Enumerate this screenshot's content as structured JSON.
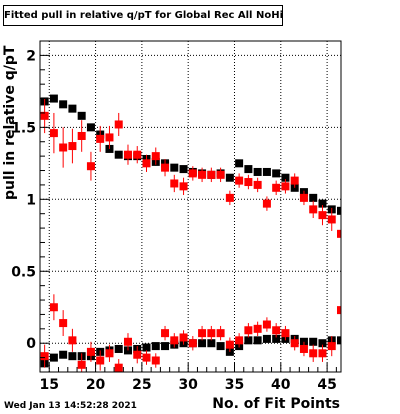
{
  "chart_data": {
    "type": "scatter",
    "title": "Fitted pull in relative q/pT for Global Rec All NoHits",
    "xlabel": "No. of Fit Points",
    "ylabel": "pull in relative q/pT",
    "xlim": [
      14,
      46.5
    ],
    "ylim": [
      -0.2,
      2.1
    ],
    "xticks": [
      "15",
      "20",
      "25",
      "30",
      "35",
      "40",
      "45"
    ],
    "xtick_values": [
      15,
      20,
      25,
      30,
      35,
      40,
      45
    ],
    "yticks": [
      "0",
      "0.5",
      "1",
      "1.5",
      "2"
    ],
    "ytick_values": [
      0,
      0.5,
      1,
      1.5,
      2
    ],
    "grid": true,
    "series": [
      {
        "color": "#000000",
        "values_upper": [
          [
            14.5,
            1.68,
            0.02
          ],
          [
            15.5,
            1.7,
            0.02
          ],
          [
            16.5,
            1.66,
            0.02
          ],
          [
            17.5,
            1.63,
            0.02
          ],
          [
            18.5,
            1.58,
            0.02
          ],
          [
            19.5,
            1.5,
            0.02
          ],
          [
            20.5,
            1.45,
            0.02
          ],
          [
            21.5,
            1.35,
            0.02
          ],
          [
            22.5,
            1.31,
            0.02
          ],
          [
            23.5,
            1.3,
            0.02
          ],
          [
            24.5,
            1.3,
            0.02
          ],
          [
            25.5,
            1.28,
            0.02
          ],
          [
            26.5,
            1.26,
            0.02
          ],
          [
            27.5,
            1.25,
            0.02
          ],
          [
            28.5,
            1.22,
            0.02
          ],
          [
            29.5,
            1.21,
            0.02
          ],
          [
            30.5,
            1.19,
            0.02
          ],
          [
            31.5,
            1.18,
            0.02
          ],
          [
            32.5,
            1.17,
            0.02
          ],
          [
            33.5,
            1.18,
            0.02
          ],
          [
            34.5,
            1.15,
            0.02
          ],
          [
            35.5,
            1.25,
            0.02
          ],
          [
            36.5,
            1.21,
            0.02
          ],
          [
            37.5,
            1.19,
            0.02
          ],
          [
            38.5,
            1.19,
            0.02
          ],
          [
            39.5,
            1.18,
            0.02
          ],
          [
            40.5,
            1.15,
            0.02
          ],
          [
            41.5,
            1.08,
            0.02
          ],
          [
            42.5,
            1.05,
            0.02
          ],
          [
            43.5,
            1.01,
            0.02
          ],
          [
            44.5,
            0.97,
            0.02
          ],
          [
            45.5,
            0.93,
            0.02
          ],
          [
            46.5,
            0.92,
            0.02
          ]
        ],
        "values_lower": [
          [
            14.5,
            -0.14,
            0.02
          ],
          [
            15.5,
            -0.1,
            0.02
          ],
          [
            16.5,
            -0.08,
            0.02
          ],
          [
            17.5,
            -0.09,
            0.02
          ],
          [
            18.5,
            -0.09,
            0.02
          ],
          [
            19.5,
            -0.09,
            0.02
          ],
          [
            20.5,
            -0.06,
            0.02
          ],
          [
            21.5,
            -0.05,
            0.02
          ],
          [
            22.5,
            -0.04,
            0.02
          ],
          [
            23.5,
            -0.05,
            0.02
          ],
          [
            24.5,
            -0.04,
            0.02
          ],
          [
            25.5,
            -0.03,
            0.02
          ],
          [
            26.5,
            -0.02,
            0.02
          ],
          [
            27.5,
            -0.02,
            0.02
          ],
          [
            28.5,
            -0.01,
            0.02
          ],
          [
            29.5,
            0.0,
            0.02
          ],
          [
            30.5,
            0.0,
            0.02
          ],
          [
            31.5,
            0.0,
            0.02
          ],
          [
            32.5,
            0.0,
            0.02
          ],
          [
            33.5,
            -0.02,
            0.02
          ],
          [
            34.5,
            -0.06,
            0.02
          ],
          [
            35.5,
            -0.02,
            0.02
          ],
          [
            36.5,
            0.02,
            0.02
          ],
          [
            37.5,
            0.02,
            0.02
          ],
          [
            38.5,
            0.03,
            0.02
          ],
          [
            39.5,
            0.03,
            0.02
          ],
          [
            40.5,
            0.03,
            0.02
          ],
          [
            41.5,
            0.03,
            0.02
          ],
          [
            42.5,
            0.01,
            0.02
          ],
          [
            43.5,
            0.01,
            0.02
          ],
          [
            44.5,
            0.0,
            0.02
          ],
          [
            45.5,
            0.02,
            0.02
          ],
          [
            46.5,
            0.02,
            0.02
          ]
        ]
      },
      {
        "color": "#ff0000",
        "values_upper": [
          [
            14.5,
            1.58,
            0.12
          ],
          [
            15.5,
            1.46,
            0.14
          ],
          [
            16.5,
            1.36,
            0.14
          ],
          [
            17.5,
            1.37,
            0.12
          ],
          [
            18.5,
            1.44,
            0.11
          ],
          [
            19.5,
            1.23,
            0.1
          ],
          [
            20.5,
            1.42,
            0.09
          ],
          [
            21.5,
            1.43,
            0.08
          ],
          [
            22.5,
            1.52,
            0.08
          ],
          [
            23.5,
            1.31,
            0.07
          ],
          [
            24.5,
            1.31,
            0.06
          ],
          [
            25.5,
            1.25,
            0.06
          ],
          [
            26.5,
            1.3,
            0.06
          ],
          [
            27.5,
            1.22,
            0.06
          ],
          [
            28.5,
            1.11,
            0.06
          ],
          [
            29.5,
            1.09,
            0.06
          ],
          [
            30.5,
            1.18,
            0.05
          ],
          [
            31.5,
            1.17,
            0.05
          ],
          [
            32.5,
            1.17,
            0.05
          ],
          [
            33.5,
            1.17,
            0.05
          ],
          [
            34.5,
            1.01,
            0.05
          ],
          [
            35.5,
            1.13,
            0.05
          ],
          [
            36.5,
            1.12,
            0.05
          ],
          [
            37.5,
            1.1,
            0.05
          ],
          [
            38.5,
            0.97,
            0.05
          ],
          [
            39.5,
            1.08,
            0.05
          ],
          [
            40.5,
            1.09,
            0.05
          ],
          [
            41.5,
            1.13,
            0.05
          ],
          [
            42.5,
            1.01,
            0.05
          ],
          [
            43.5,
            0.93,
            0.06
          ],
          [
            44.5,
            0.89,
            0.07
          ],
          [
            45.5,
            0.86,
            0.08
          ],
          [
            46.5,
            0.76,
            0.09
          ]
        ],
        "values_lower": [
          [
            14.5,
            -0.09,
            0.08
          ],
          [
            15.5,
            0.25,
            0.09
          ],
          [
            16.5,
            0.14,
            0.09
          ],
          [
            17.5,
            0.02,
            0.08
          ],
          [
            18.5,
            -0.15,
            0.08
          ],
          [
            19.5,
            -0.06,
            0.07
          ],
          [
            20.5,
            -0.12,
            0.07
          ],
          [
            21.5,
            -0.07,
            0.06
          ],
          [
            22.5,
            -0.17,
            0.06
          ],
          [
            23.5,
            0.01,
            0.06
          ],
          [
            24.5,
            -0.08,
            0.06
          ],
          [
            25.5,
            -0.1,
            0.05
          ],
          [
            26.5,
            -0.12,
            0.05
          ],
          [
            27.5,
            0.07,
            0.05
          ],
          [
            28.5,
            0.02,
            0.05
          ],
          [
            29.5,
            0.04,
            0.05
          ],
          [
            30.5,
            0.0,
            0.05
          ],
          [
            31.5,
            0.07,
            0.05
          ],
          [
            32.5,
            0.07,
            0.05
          ],
          [
            33.5,
            0.07,
            0.05
          ],
          [
            34.5,
            -0.01,
            0.05
          ],
          [
            35.5,
            0.02,
            0.05
          ],
          [
            36.5,
            0.09,
            0.05
          ],
          [
            37.5,
            0.1,
            0.05
          ],
          [
            38.5,
            0.13,
            0.05
          ],
          [
            39.5,
            0.09,
            0.05
          ],
          [
            40.5,
            0.07,
            0.05
          ],
          [
            41.5,
            0.0,
            0.05
          ],
          [
            42.5,
            -0.04,
            0.05
          ],
          [
            43.5,
            -0.07,
            0.06
          ],
          [
            44.5,
            -0.07,
            0.06
          ],
          [
            45.5,
            -0.02,
            0.07
          ],
          [
            46.5,
            0.23,
            0.08
          ]
        ]
      }
    ]
  },
  "footer": {
    "timestamp": "Wed Jan 13 14:52:28 2021"
  }
}
